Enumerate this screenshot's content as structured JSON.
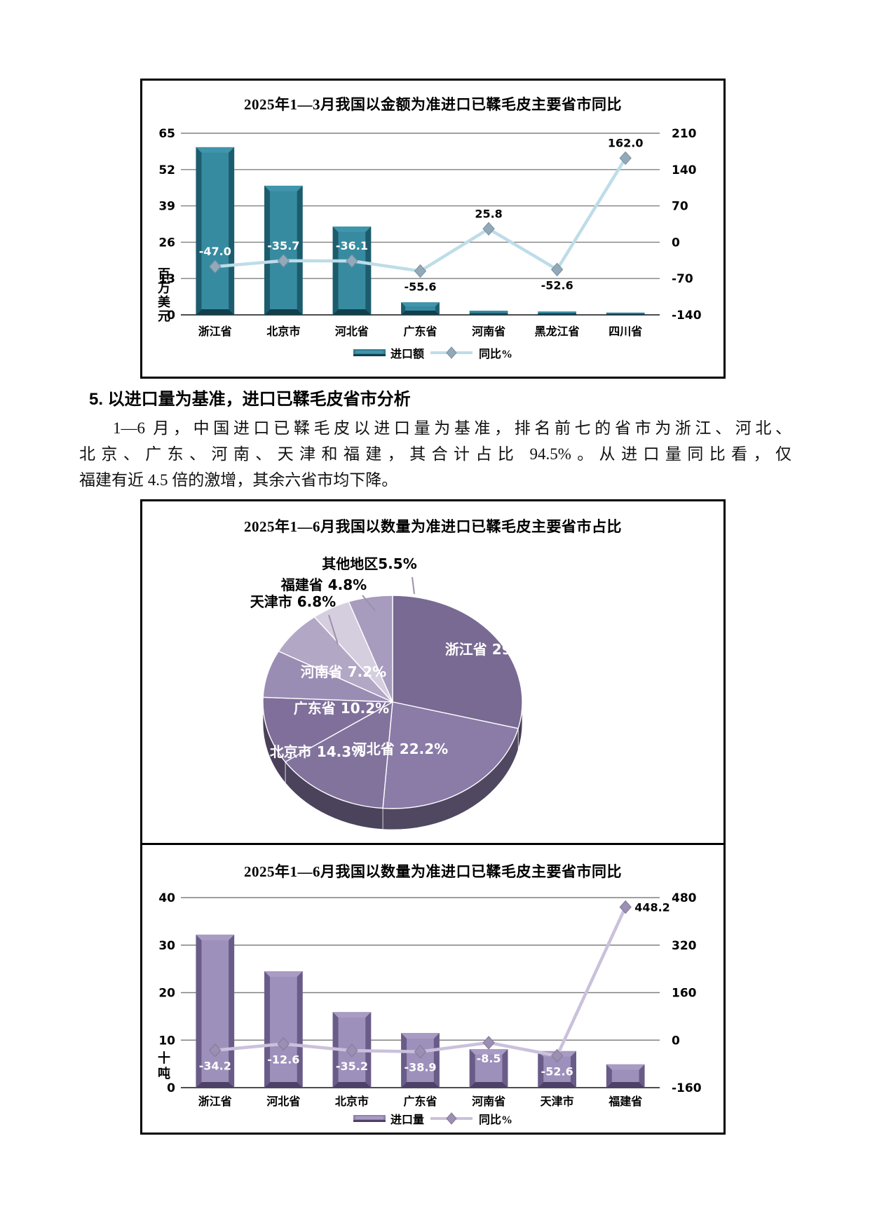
{
  "section": {
    "heading": "5. 以进口量为基准，进口已鞣毛皮省市分析",
    "paragraph_lines": [
      "1—6 月，中国进口已鞣毛皮以进口量为基准，排名前七的省市为浙江、河北、",
      "北京、广东、河南、天津和福建，其合计占比 94.5%。从进口量同比看，仅",
      "福建有近 4.5 倍的激增，其余六省市均下降。"
    ]
  },
  "chart_data": [
    {
      "id": "import-value-yoy",
      "type": "bar+line",
      "title": "2025年1—3月我国以金额为准进口已鞣毛皮主要省市同比",
      "categories": [
        "浙江省",
        "北京市",
        "河北省",
        "广东省",
        "河南省",
        "黑龙江省",
        "四川省"
      ],
      "series": [
        {
          "name": "进口额",
          "type": "bar",
          "axis": "left",
          "values": [
            60,
            46.2,
            31.6,
            4.5,
            1.5,
            1.2,
            0.8
          ]
        },
        {
          "name": "同比%",
          "type": "line",
          "axis": "right",
          "values": [
            -47.0,
            -35.7,
            -36.1,
            -55.6,
            25.8,
            -52.6,
            162.0
          ],
          "point_labels": [
            "-47.0",
            "-35.7",
            "-36.1",
            "-55.6",
            "25.8",
            "-52.6",
            "162.0"
          ],
          "label_placement": [
            "above",
            "above",
            "above",
            "below",
            "above",
            "below",
            "above"
          ],
          "label_color": [
            "#ffffff",
            "#ffffff",
            "#ffffff",
            "#000000",
            "#000000",
            "#000000",
            "#000000"
          ]
        }
      ],
      "left_axis": {
        "title": "百万美元",
        "min": 0,
        "max": 65,
        "ticks": [
          65,
          52,
          39,
          26,
          13,
          0
        ]
      },
      "right_axis": {
        "min": -140,
        "max": 210,
        "ticks": [
          210,
          140,
          70,
          0,
          -70,
          -140
        ]
      },
      "legend": [
        "进口额",
        "同比%"
      ],
      "grid": true,
      "legend_position": "bottom",
      "colors": {
        "bar": "#2E7E92",
        "bar_light": "#3F95AB",
        "bar_dark": "#1D5C6D",
        "bar_darkest": "#123F4C",
        "line": "#BDDDE8",
        "marker": "#93A9BA",
        "marker_edge": "#76909F",
        "grid": "#808080"
      }
    },
    {
      "id": "import-qty-share",
      "type": "pie",
      "title": "2025年1—6月我国以数量为准进口已鞣毛皮主要省市占比",
      "unit": "%",
      "slices": [
        {
          "name": "浙江省",
          "value": 29.0,
          "label": "浙江省 29.0%",
          "color": "#786a92",
          "label_inside": true,
          "label_xy": [
            500,
            218
          ]
        },
        {
          "name": "河北省",
          "value": 22.2,
          "label": "河北省 22.2%",
          "color": "#8a7ba7",
          "label_inside": true,
          "label_xy": [
            368,
            360
          ]
        },
        {
          "name": "北京市",
          "value": 14.3,
          "label": "北京市 14.3%",
          "color": "#82739d",
          "label_inside": true,
          "label_xy": [
            250,
            364
          ]
        },
        {
          "name": "广东省",
          "value": 10.2,
          "label": "广东省 10.2%",
          "color": "#7f6f9a",
          "label_inside": true,
          "label_xy": [
            284,
            302
          ]
        },
        {
          "name": "河南省",
          "value": 7.2,
          "label": "河南省 7.2%",
          "color": "#9a8db3",
          "label_inside": true,
          "label_xy": [
            287,
            250
          ]
        },
        {
          "name": "天津市",
          "value": 6.8,
          "label": "天津市 6.8%",
          "color": "#b2a7c5",
          "label_inside": false,
          "label_xy": [
            215,
            150
          ],
          "leader": [
            [
              266,
              162
            ],
            [
              279,
              204
            ]
          ]
        },
        {
          "name": "福建省",
          "value": 4.8,
          "label": "福建省 4.8%",
          "color": "#d5cedf",
          "label_inside": false,
          "label_xy": [
            259,
            126
          ],
          "leader": [
            [
              314,
              134
            ],
            [
              332,
              156
            ]
          ]
        },
        {
          "name": "其他地区",
          "value": 5.5,
          "label": "其他地区5.5%",
          "color": "#a79bbe",
          "label_inside": false,
          "label_xy": [
            324,
            96
          ],
          "leader": [
            [
              385,
              108
            ],
            [
              388,
              132
            ]
          ]
        }
      ]
    },
    {
      "id": "import-qty-yoy",
      "type": "bar+line",
      "title": "2025年1—6月我国以数量为准进口已鞣毛皮主要省市同比",
      "categories": [
        "浙江省",
        "河北省",
        "北京市",
        "广东省",
        "河南省",
        "天津市",
        "福建省"
      ],
      "series": [
        {
          "name": "进口量",
          "type": "bar",
          "axis": "left",
          "values": [
            32.2,
            24.5,
            15.9,
            11.5,
            8.1,
            7.7,
            4.9
          ]
        },
        {
          "name": "同比%",
          "type": "line",
          "axis": "right",
          "values": [
            -34.2,
            -12.6,
            -35.2,
            -38.9,
            -8.5,
            -52.6,
            448.2
          ],
          "point_labels": [
            "-34.2",
            "-12.6",
            "-35.2",
            "-38.9",
            "-8.5",
            "-52.6",
            "448.2"
          ],
          "label_placement": [
            "below",
            "below",
            "below",
            "below",
            "below",
            "below",
            "right"
          ],
          "label_color": [
            "#ffffff",
            "#ffffff",
            "#ffffff",
            "#ffffff",
            "#ffffff",
            "#ffffff",
            "#000000"
          ]
        }
      ],
      "left_axis": {
        "title": "十吨",
        "min": 0,
        "max": 40,
        "ticks": [
          40,
          30,
          20,
          10,
          0
        ]
      },
      "right_axis": {
        "min": -160,
        "max": 480,
        "ticks": [
          480,
          320,
          160,
          0,
          -160
        ]
      },
      "legend": [
        "进口量",
        "同比%"
      ],
      "grid": true,
      "legend_position": "bottom",
      "colors": {
        "bar": "#9083AF",
        "bar_light": "#A89BC4",
        "bar_dark": "#6A5C88",
        "bar_darkest": "#4E4168",
        "line": "#CBC1DC",
        "marker": "#9C8FB4",
        "marker_edge": "#857898",
        "grid": "#808080"
      }
    }
  ]
}
